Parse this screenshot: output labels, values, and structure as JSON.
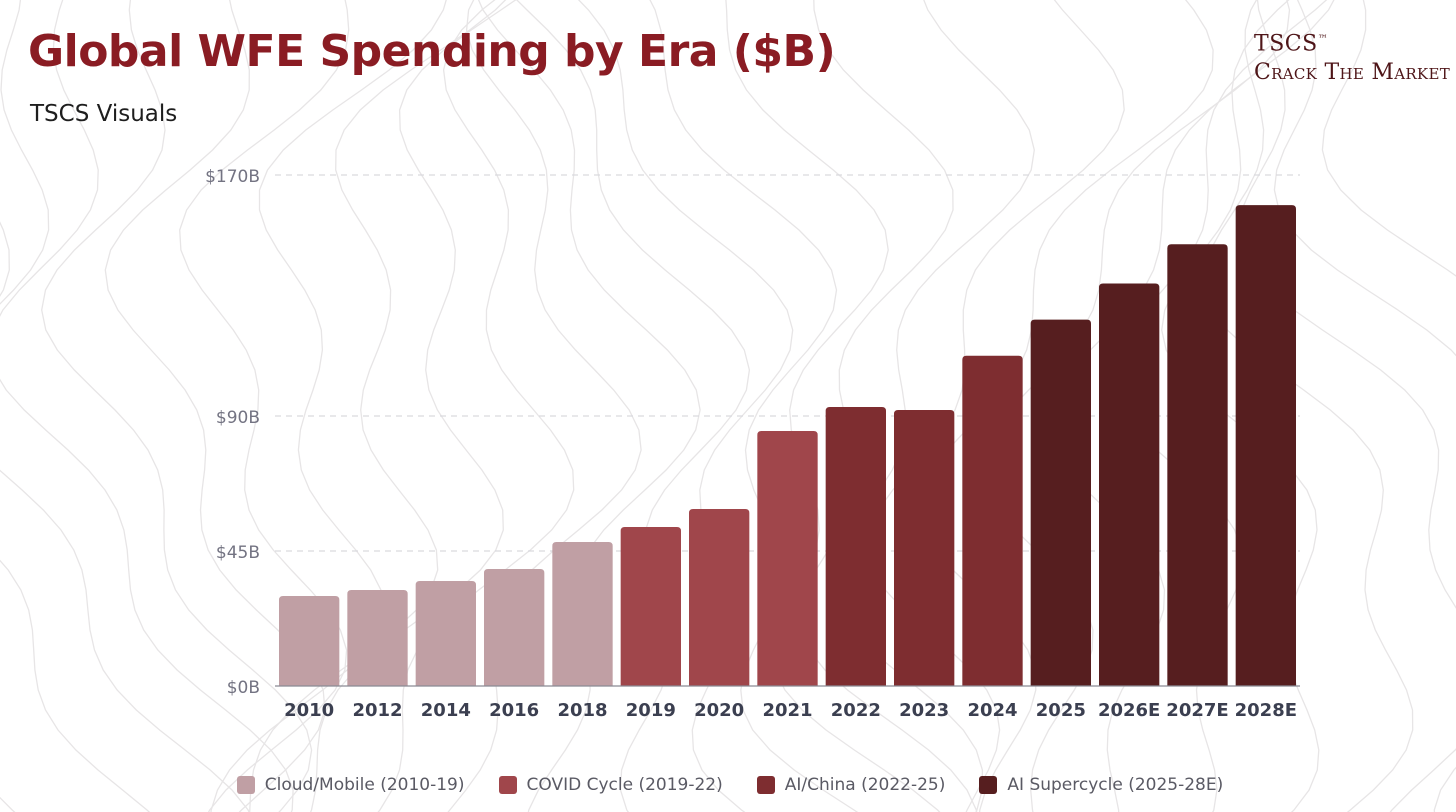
{
  "header": {
    "title": "Global WFE Spending by Era ($B)",
    "subtitle": "TSCS Visuals"
  },
  "brand": {
    "name": "TSCS",
    "trademark": "™",
    "tagline": "Crack The Market"
  },
  "chart_data": {
    "type": "bar",
    "categories": [
      "2010",
      "2012",
      "2014",
      "2016",
      "2018",
      "2019",
      "2020",
      "2021",
      "2022",
      "2023",
      "2024",
      "2025",
      "2026E",
      "2027E",
      "2028E"
    ],
    "values": [
      30,
      32,
      35,
      39,
      48,
      53,
      59,
      85,
      93,
      92,
      110,
      122,
      134,
      147,
      160
    ],
    "era_index": [
      0,
      0,
      0,
      0,
      0,
      1,
      1,
      1,
      2,
      2,
      2,
      3,
      3,
      3,
      3
    ],
    "y_ticks": [
      0,
      45,
      90,
      170
    ],
    "y_tick_labels": [
      "$0B",
      "$45B",
      "$90B",
      "$170B"
    ],
    "ylim": [
      0,
      170
    ],
    "grid": true,
    "legend_position": "bottom",
    "eras": [
      {
        "name": "Cloud/Mobile (2010-19)",
        "color": "#c09fa4"
      },
      {
        "name": "COVID Cycle (2019-22)",
        "color": "#a0464b"
      },
      {
        "name": "AI/China (2022-25)",
        "color": "#7e2d30"
      },
      {
        "name": "AI Supercycle (2025-28E)",
        "color": "#561e1f"
      }
    ]
  }
}
